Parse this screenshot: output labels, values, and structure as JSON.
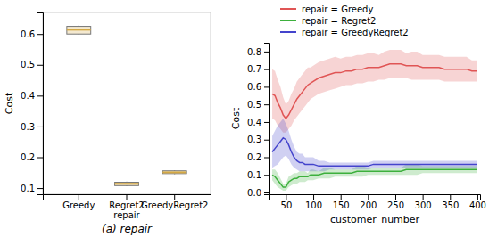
{
  "chart_data": [
    {
      "type": "box",
      "categories": [
        "Greedy",
        "Regret2\nrepair",
        "GreedyRegret2"
      ],
      "q1": [
        0.6,
        0.108,
        0.147
      ],
      "median": [
        0.614,
        0.114,
        0.151
      ],
      "q3": [
        0.625,
        0.119,
        0.156
      ],
      "whisker_low": [
        0.598,
        0.106,
        0.145
      ],
      "whisker_high": [
        0.628,
        0.121,
        0.158
      ],
      "ylabel": "Cost",
      "ylim": [
        0.08,
        0.67
      ],
      "yticks": [
        0.1,
        0.2,
        0.3,
        0.4,
        0.5,
        0.6
      ],
      "color": "#d4a843",
      "annotations": [
        "(a) repair"
      ]
    },
    {
      "type": "line",
      "x": [
        25,
        30,
        35,
        40,
        45,
        50,
        55,
        60,
        65,
        70,
        75,
        80,
        85,
        90,
        95,
        100,
        110,
        120,
        130,
        140,
        150,
        160,
        170,
        180,
        190,
        200,
        210,
        220,
        230,
        240,
        250,
        260,
        270,
        280,
        290,
        300,
        310,
        320,
        330,
        340,
        350,
        360,
        370,
        380,
        390,
        400
      ],
      "series": [
        {
          "name": "repair = Greedy",
          "color": "#e05555",
          "values": [
            0.56,
            0.55,
            0.51,
            0.48,
            0.44,
            0.42,
            0.44,
            0.47,
            0.5,
            0.53,
            0.55,
            0.57,
            0.59,
            0.61,
            0.62,
            0.63,
            0.65,
            0.66,
            0.67,
            0.68,
            0.68,
            0.69,
            0.69,
            0.7,
            0.7,
            0.71,
            0.71,
            0.71,
            0.72,
            0.73,
            0.73,
            0.73,
            0.72,
            0.72,
            0.72,
            0.71,
            0.71,
            0.71,
            0.71,
            0.7,
            0.7,
            0.7,
            0.7,
            0.7,
            0.69,
            0.69
          ],
          "lower": [
            0.42,
            0.41,
            0.38,
            0.36,
            0.34,
            0.34,
            0.36,
            0.38,
            0.41,
            0.43,
            0.45,
            0.47,
            0.49,
            0.51,
            0.53,
            0.54,
            0.56,
            0.57,
            0.58,
            0.59,
            0.6,
            0.61,
            0.61,
            0.62,
            0.62,
            0.63,
            0.63,
            0.64,
            0.64,
            0.65,
            0.65,
            0.65,
            0.65,
            0.64,
            0.64,
            0.64,
            0.64,
            0.64,
            0.64,
            0.63,
            0.63,
            0.63,
            0.63,
            0.63,
            0.63,
            0.63
          ],
          "upper": [
            0.7,
            0.69,
            0.64,
            0.6,
            0.54,
            0.5,
            0.52,
            0.56,
            0.59,
            0.63,
            0.65,
            0.67,
            0.69,
            0.71,
            0.71,
            0.72,
            0.74,
            0.75,
            0.76,
            0.77,
            0.76,
            0.77,
            0.77,
            0.78,
            0.78,
            0.79,
            0.79,
            0.78,
            0.8,
            0.81,
            0.81,
            0.81,
            0.79,
            0.8,
            0.8,
            0.78,
            0.78,
            0.78,
            0.78,
            0.77,
            0.77,
            0.77,
            0.77,
            0.77,
            0.75,
            0.75
          ]
        },
        {
          "name": "repair = Regret2",
          "color": "#3db03d",
          "values": [
            0.1,
            0.09,
            0.07,
            0.05,
            0.03,
            0.03,
            0.06,
            0.07,
            0.08,
            0.08,
            0.09,
            0.09,
            0.09,
            0.09,
            0.1,
            0.1,
            0.1,
            0.11,
            0.11,
            0.11,
            0.11,
            0.11,
            0.11,
            0.12,
            0.12,
            0.12,
            0.12,
            0.12,
            0.12,
            0.12,
            0.12,
            0.12,
            0.13,
            0.13,
            0.13,
            0.13,
            0.13,
            0.13,
            0.13,
            0.13,
            0.13,
            0.13,
            0.13,
            0.13,
            0.13,
            0.13
          ],
          "lower": [
            0.07,
            0.05,
            0.03,
            0.02,
            0.01,
            0.01,
            0.03,
            0.04,
            0.05,
            0.05,
            0.06,
            0.06,
            0.06,
            0.07,
            0.07,
            0.07,
            0.08,
            0.08,
            0.08,
            0.09,
            0.09,
            0.09,
            0.09,
            0.09,
            0.09,
            0.1,
            0.1,
            0.1,
            0.1,
            0.1,
            0.1,
            0.1,
            0.1,
            0.1,
            0.1,
            0.11,
            0.11,
            0.11,
            0.11,
            0.11,
            0.11,
            0.11,
            0.11,
            0.11,
            0.11,
            0.11
          ],
          "upper": [
            0.13,
            0.13,
            0.11,
            0.08,
            0.05,
            0.05,
            0.09,
            0.1,
            0.11,
            0.11,
            0.12,
            0.12,
            0.12,
            0.11,
            0.13,
            0.13,
            0.12,
            0.14,
            0.14,
            0.13,
            0.13,
            0.13,
            0.13,
            0.15,
            0.15,
            0.14,
            0.14,
            0.14,
            0.14,
            0.14,
            0.14,
            0.14,
            0.16,
            0.16,
            0.16,
            0.15,
            0.15,
            0.15,
            0.15,
            0.15,
            0.15,
            0.15,
            0.15,
            0.15,
            0.15,
            0.15
          ]
        },
        {
          "name": "repair = GreedyRegret2",
          "color": "#4444cc",
          "values": [
            0.23,
            0.25,
            0.27,
            0.29,
            0.31,
            0.3,
            0.27,
            0.23,
            0.2,
            0.18,
            0.17,
            0.17,
            0.16,
            0.16,
            0.16,
            0.16,
            0.15,
            0.15,
            0.15,
            0.15,
            0.15,
            0.15,
            0.15,
            0.15,
            0.15,
            0.15,
            0.16,
            0.16,
            0.16,
            0.16,
            0.16,
            0.16,
            0.16,
            0.16,
            0.16,
            0.16,
            0.16,
            0.16,
            0.16,
            0.16,
            0.16,
            0.16,
            0.16,
            0.16,
            0.16,
            0.16
          ],
          "lower": [
            0.14,
            0.15,
            0.16,
            0.18,
            0.2,
            0.21,
            0.19,
            0.16,
            0.14,
            0.13,
            0.12,
            0.12,
            0.12,
            0.12,
            0.12,
            0.12,
            0.12,
            0.12,
            0.13,
            0.13,
            0.13,
            0.13,
            0.13,
            0.13,
            0.13,
            0.13,
            0.14,
            0.14,
            0.14,
            0.14,
            0.14,
            0.14,
            0.14,
            0.14,
            0.14,
            0.14,
            0.14,
            0.14,
            0.14,
            0.14,
            0.14,
            0.14,
            0.14,
            0.14,
            0.14,
            0.14
          ],
          "upper": [
            0.32,
            0.35,
            0.38,
            0.4,
            0.42,
            0.39,
            0.35,
            0.3,
            0.26,
            0.23,
            0.22,
            0.22,
            0.2,
            0.2,
            0.2,
            0.2,
            0.18,
            0.18,
            0.17,
            0.17,
            0.17,
            0.17,
            0.17,
            0.17,
            0.17,
            0.17,
            0.18,
            0.18,
            0.18,
            0.18,
            0.18,
            0.18,
            0.18,
            0.18,
            0.18,
            0.18,
            0.18,
            0.18,
            0.18,
            0.18,
            0.18,
            0.18,
            0.18,
            0.18,
            0.18,
            0.18
          ]
        }
      ],
      "xlabel": "customer_number",
      "ylabel": "Cost",
      "xlim": [
        20,
        405
      ],
      "xticks": [
        50,
        100,
        150,
        200,
        250,
        300,
        350,
        400
      ],
      "ylim": [
        -0.01,
        0.85
      ],
      "yticks": [
        {
          "value": 0,
          "label": "0.0"
        },
        0.1,
        0.2,
        0.3,
        0.4,
        0.5,
        0.6,
        0.7,
        0.8
      ],
      "legend": "top"
    }
  ]
}
